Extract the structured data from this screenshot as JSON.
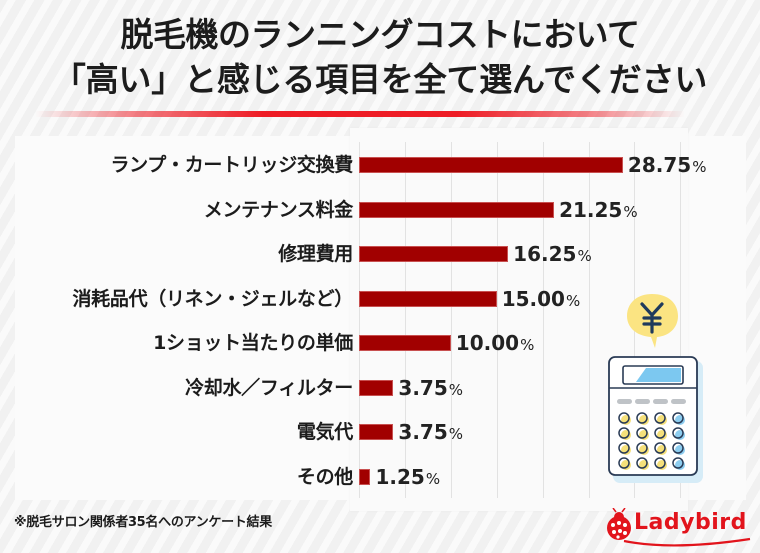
{
  "title": {
    "line1": "脱毛機のランニングコストにおいて",
    "line2": "「高い」と感じる項目を全て選んでください"
  },
  "chart_data": {
    "type": "bar",
    "orientation": "horizontal",
    "title": "脱毛機のランニングコストにおいて「高い」と感じる項目を全て選んでください",
    "categories": [
      "ランプ・カートリッジ交換費",
      "メンテナンス料金",
      "修理費用",
      "消耗品代（リネン・ジェルなど）",
      "1ショット当たりの単価",
      "冷却水／フィルター",
      "電気代",
      "その他"
    ],
    "values": [
      28.75,
      21.25,
      16.25,
      15.0,
      10.0,
      3.75,
      3.75,
      1.25
    ],
    "value_labels": [
      "28.75",
      "21.25",
      "16.25",
      "15.00",
      "10.00",
      "3.75",
      "3.75",
      "1.25"
    ],
    "unit": "%",
    "xlabel": "",
    "ylabel": "",
    "xlim": [
      0,
      35
    ],
    "grid": true,
    "grid_step": 5,
    "bar_color": "#a10000",
    "legend": null
  },
  "footnote": "※脱毛サロン関係者35名へのアンケート結果",
  "illustration": {
    "bubble_symbol": "¥",
    "bubble_color": "#fbe482",
    "calculator_display_color": "#7cc8f0",
    "calculator_key_yellow": "#f5e07a",
    "calculator_key_blue": "#8ccdf0"
  },
  "logo": {
    "text": "Ladybird",
    "color": "#e2141c"
  },
  "colors": {
    "accent_red": "#ee1c25",
    "bar": "#a10000",
    "text": "#1c1c1c"
  }
}
